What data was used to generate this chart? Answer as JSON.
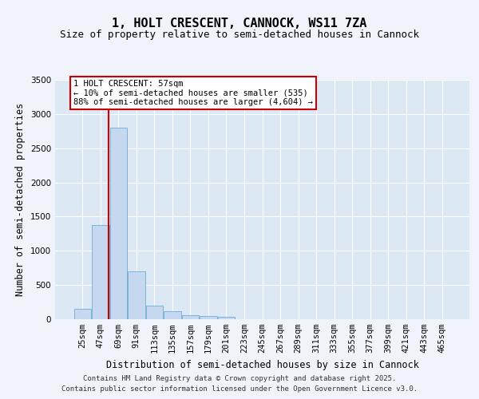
{
  "title": "1, HOLT CRESCENT, CANNOCK, WS11 7ZA",
  "subtitle": "Size of property relative to semi-detached houses in Cannock",
  "xlabel": "Distribution of semi-detached houses by size in Cannock",
  "ylabel": "Number of semi-detached properties",
  "categories": [
    "25sqm",
    "47sqm",
    "69sqm",
    "91sqm",
    "113sqm",
    "135sqm",
    "157sqm",
    "179sqm",
    "201sqm",
    "223sqm",
    "245sqm",
    "267sqm",
    "289sqm",
    "311sqm",
    "333sqm",
    "355sqm",
    "377sqm",
    "399sqm",
    "421sqm",
    "443sqm",
    "465sqm"
  ],
  "values": [
    150,
    1380,
    2800,
    700,
    200,
    120,
    60,
    50,
    30,
    5,
    0,
    0,
    0,
    0,
    0,
    0,
    0,
    0,
    0,
    0,
    0
  ],
  "bar_color": "#c5d8f0",
  "bar_edgecolor": "#6baed6",
  "ylim": [
    0,
    3500
  ],
  "yticks": [
    0,
    500,
    1000,
    1500,
    2000,
    2500,
    3000,
    3500
  ],
  "property_line_color": "#cc0000",
  "annotation_text": "1 HOLT CRESCENT: 57sqm\n← 10% of semi-detached houses are smaller (535)\n88% of semi-detached houses are larger (4,604) →",
  "annotation_box_color": "#cc0000",
  "footer_line1": "Contains HM Land Registry data © Crown copyright and database right 2025.",
  "footer_line2": "Contains public sector information licensed under the Open Government Licence v3.0.",
  "bg_color": "#f0f4fa",
  "plot_bg_color": "#dde8f5",
  "grid_color": "#ffffff",
  "title_fontsize": 11,
  "subtitle_fontsize": 9,
  "axis_label_fontsize": 8.5,
  "tick_fontsize": 7.5,
  "footer_fontsize": 6.5,
  "prop_bar_index": 1.45
}
